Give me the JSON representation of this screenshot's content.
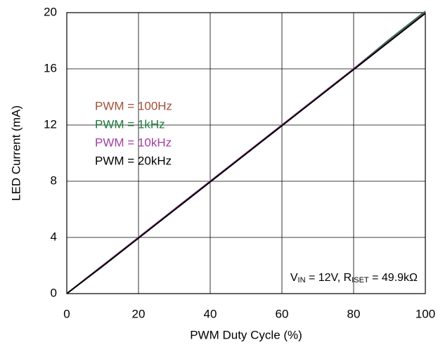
{
  "chart_data": {
    "type": "line",
    "xlabel": "PWM Duty Cycle (%)",
    "ylabel": "LED Current (mA)",
    "x": [
      0,
      10,
      20,
      30,
      40,
      50,
      60,
      70,
      80,
      90,
      100
    ],
    "series": [
      {
        "name": "PWM = 100Hz",
        "color": "#a0503a",
        "values": [
          0,
          2,
          4,
          6,
          8,
          10,
          12,
          14,
          16,
          18,
          20
        ]
      },
      {
        "name": "PWM = 1kHz",
        "color": "#1e7d3c",
        "values": [
          0,
          2,
          4,
          6,
          8,
          10,
          12,
          14,
          16,
          18.1,
          20.1
        ]
      },
      {
        "name": "PWM = 10kHz",
        "color": "#a33ea0",
        "values": [
          0,
          2,
          4,
          6,
          8,
          10,
          12,
          14,
          16,
          18,
          20
        ]
      },
      {
        "name": "PWM = 20kHz",
        "color": "#000000",
        "values": [
          0,
          1.95,
          3.95,
          5.95,
          7.95,
          9.95,
          11.95,
          13.95,
          15.95,
          17.95,
          19.95
        ]
      }
    ],
    "xlim": [
      0,
      100
    ],
    "xticks": [
      0,
      20,
      40,
      60,
      80,
      100
    ],
    "ylim": [
      0,
      20
    ],
    "yticks": [
      0,
      4,
      8,
      12,
      16,
      20
    ],
    "grid": true,
    "annotation": [
      "V",
      "IN",
      " = 12V, R",
      "ISET",
      " = 49.9kΩ"
    ]
  }
}
